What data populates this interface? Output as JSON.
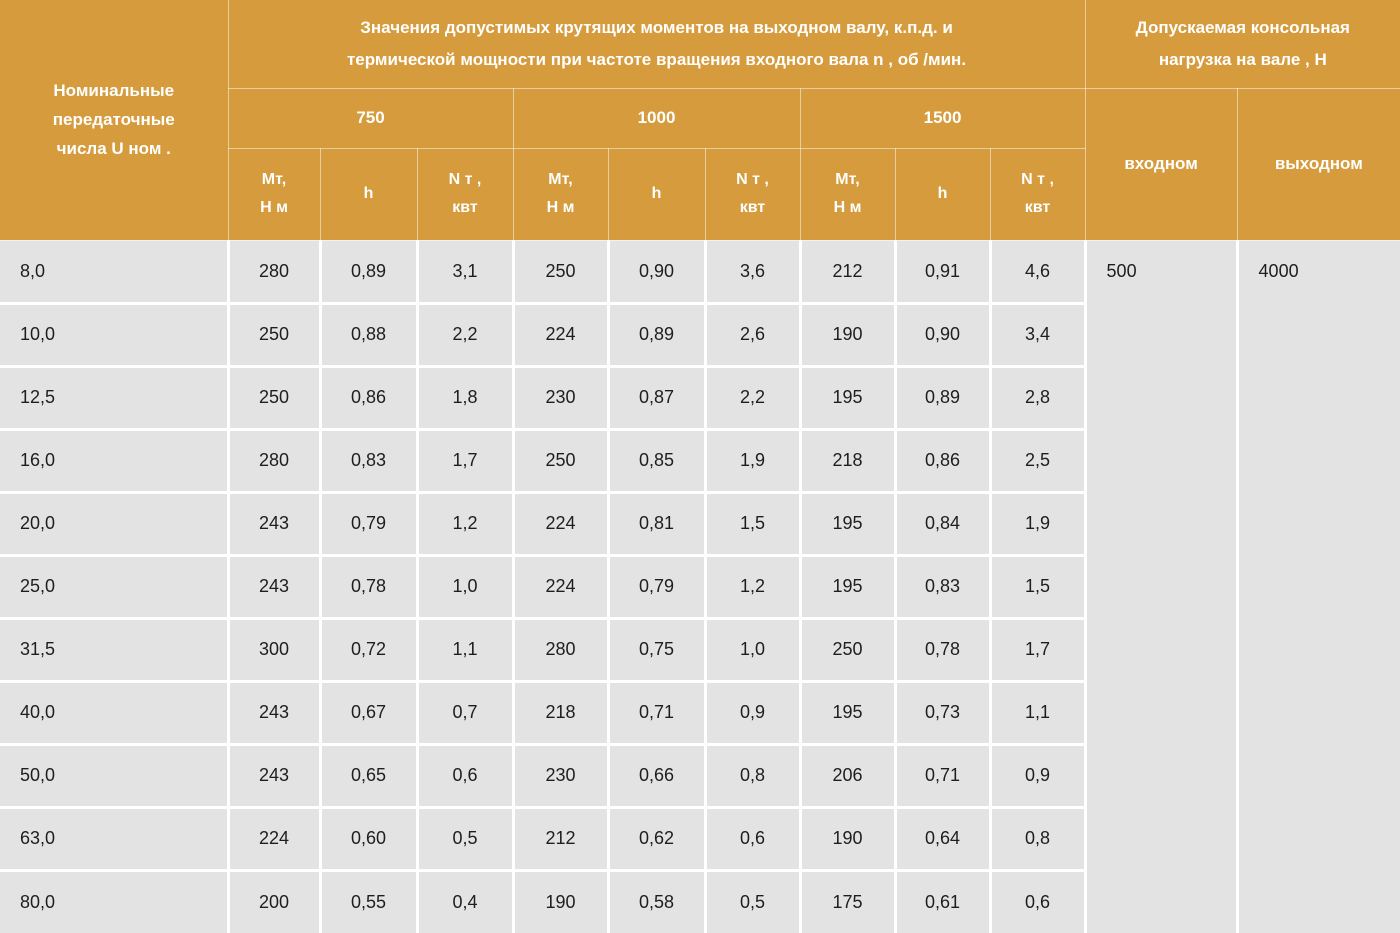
{
  "colors": {
    "header_bg": "#D59B3C",
    "cell_bg": "#E3E3E3",
    "divider": "#FFFFFF",
    "header_text": "#FFFFFF",
    "cell_text": "#1E1E1E"
  },
  "table": {
    "ratio_header_lines": [
      "Номинальные",
      "передаточные",
      "числа U ном ."
    ],
    "torque_section_title_lines": [
      "Значения допустимых крутящих моментов на выходном валу, к.п.д. и",
      "термической мощности при частоте вращения входного вала n , об /мин."
    ],
    "cantilever_section_title_lines": [
      "Допускаемая консольная",
      "нагрузка на вале , Н"
    ],
    "speeds": [
      "750",
      "1000",
      "1500"
    ],
    "units": {
      "torque_line1": "Мт,",
      "torque_line2": "Н м",
      "efficiency": "h",
      "thermal_line1": "N т ,",
      "thermal_line2": "квт"
    },
    "shaft_columns": {
      "input": "входном",
      "output": "выходном"
    },
    "rows": [
      [
        "8,0",
        "280",
        "0,89",
        "3,1",
        "250",
        "0,90",
        "3,6",
        "212",
        "0,91",
        "4,6"
      ],
      [
        "10,0",
        "250",
        "0,88",
        "2,2",
        "224",
        "0,89",
        "2,6",
        "190",
        "0,90",
        "3,4"
      ],
      [
        "12,5",
        "250",
        "0,86",
        "1,8",
        "230",
        "0,87",
        "2,2",
        "195",
        "0,89",
        "2,8"
      ],
      [
        "16,0",
        "280",
        "0,83",
        "1,7",
        "250",
        "0,85",
        "1,9",
        "218",
        "0,86",
        "2,5"
      ],
      [
        "20,0",
        "243",
        "0,79",
        "1,2",
        "224",
        "0,81",
        "1,5",
        "195",
        "0,84",
        "1,9"
      ],
      [
        "25,0",
        "243",
        "0,78",
        "1,0",
        "224",
        "0,79",
        "1,2",
        "195",
        "0,83",
        "1,5"
      ],
      [
        "31,5",
        "300",
        "0,72",
        "1,1",
        "280",
        "0,75",
        "1,0",
        "250",
        "0,78",
        "1,7"
      ],
      [
        "40,0",
        "243",
        "0,67",
        "0,7",
        "218",
        "0,71",
        "0,9",
        "195",
        "0,73",
        "1,1"
      ],
      [
        "50,0",
        "243",
        "0,65",
        "0,6",
        "230",
        "0,66",
        "0,8",
        "206",
        "0,71",
        "0,9"
      ],
      [
        "63,0",
        "224",
        "0,60",
        "0,5",
        "212",
        "0,62",
        "0,6",
        "190",
        "0,64",
        "0,8"
      ],
      [
        "80,0",
        "200",
        "0,55",
        "0,4",
        "190",
        "0,58",
        "0,5",
        "175",
        "0,61",
        "0,6"
      ]
    ],
    "cantilever_load": {
      "input": "500",
      "output": "4000"
    }
  }
}
